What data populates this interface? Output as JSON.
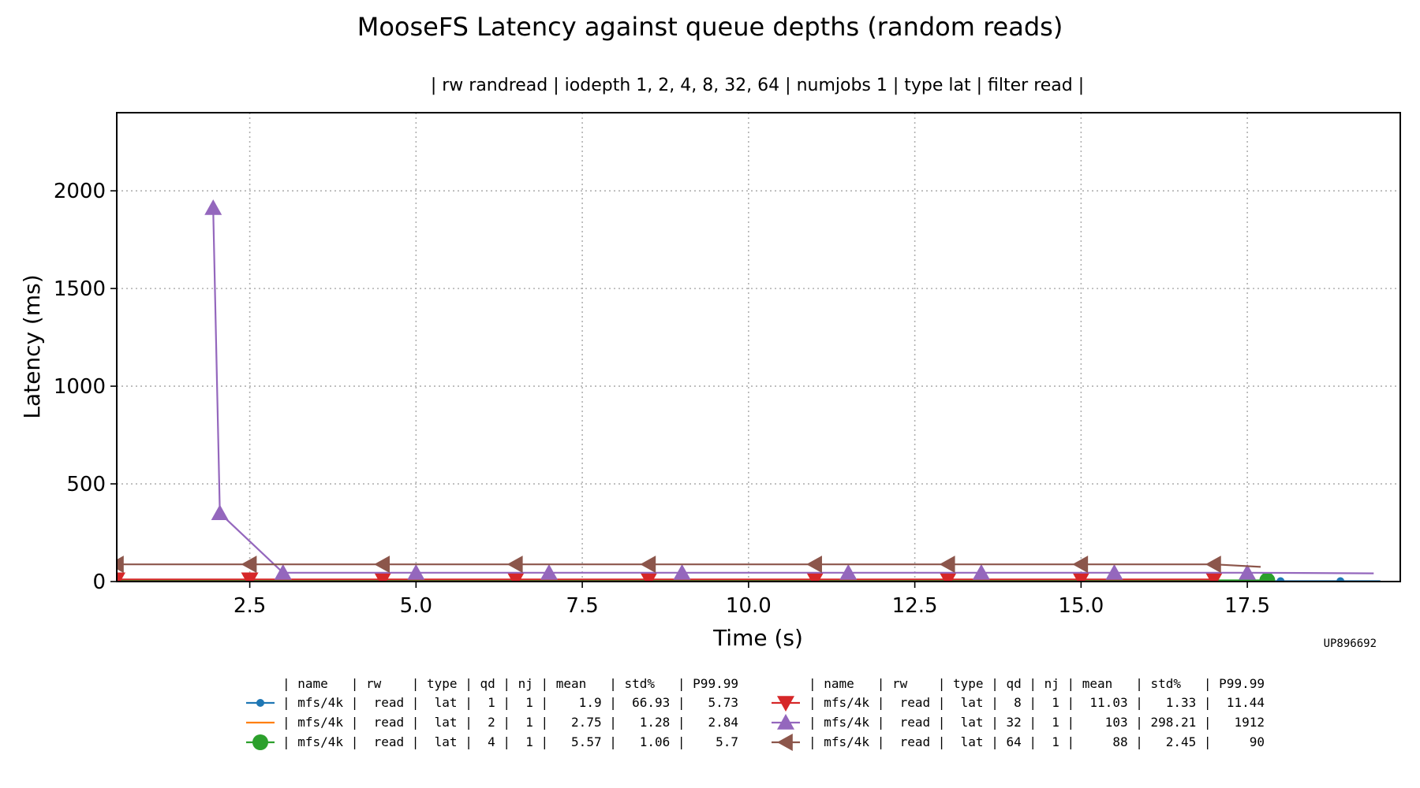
{
  "chart_data": {
    "type": "line",
    "title": "MooseFS Latency against queue depths (random reads)",
    "subtitle": "| rw randread | iodepth 1, 2, 4, 8, 32, 64 | numjobs 1 | type lat | filter read |",
    "xlabel": "Time (s)",
    "ylabel": "Latency (ms)",
    "xlim": [
      0.5,
      19.8
    ],
    "ylim": [
      0,
      2400
    ],
    "x_ticks": [
      "2.5",
      "5.0",
      "7.5",
      "10.0",
      "12.5",
      "15.0",
      "17.5"
    ],
    "y_ticks": [
      "0",
      "500",
      "1000",
      "1500",
      "2000"
    ],
    "grid": true,
    "legend_position": "bottom",
    "watermark": "UP896692",
    "legend_header": "| name   | rw    | type | qd | nj | mean   | std%   | P99.99",
    "series": [
      {
        "label": "| mfs/4k |  read |  lat |  1 |  1 |    1.9 |  66.93 |   5.73",
        "color": "#1f77b4",
        "marker": "circle-small",
        "marker_every": 18,
        "x": [
          0.5,
          1,
          2,
          3,
          4,
          5,
          6,
          7,
          8,
          9,
          10,
          11,
          12,
          13,
          14,
          15,
          16,
          17,
          18,
          18.9,
          19.5
        ],
        "y": [
          2,
          2,
          2,
          2,
          2,
          2,
          2,
          2,
          2,
          2,
          2,
          2,
          2,
          2,
          2,
          2,
          2,
          2,
          2,
          2,
          2
        ]
      },
      {
        "label": "| mfs/4k |  read |  lat |  2 |  1 |   2.75 |   1.28 |   2.84",
        "color": "#ff7f0e",
        "marker": "none",
        "marker_every": 1,
        "x": [
          0.5,
          2,
          4,
          6,
          8,
          10,
          12,
          14,
          16,
          17.8
        ],
        "y": [
          3,
          3,
          3,
          3,
          3,
          3,
          3,
          3,
          3,
          3
        ]
      },
      {
        "label": "| mfs/4k |  read |  lat |  4 |  1 |   5.57 |   1.06 |    5.7",
        "color": "#2ca02c",
        "marker": "circle",
        "marker_every": 100,
        "x": [
          0.5,
          2,
          4,
          6,
          8,
          10,
          12,
          14,
          16,
          17.8
        ],
        "y": [
          6,
          6,
          6,
          6,
          6,
          6,
          6,
          6,
          6,
          6
        ]
      },
      {
        "label": "| mfs/4k |  read |  lat |  8 |  1 |  11.03 |   1.33 |  11.44",
        "color": "#d62728",
        "marker": "triangle-down",
        "marker_every": 1,
        "x": [
          0.5,
          2.5,
          4.5,
          6.5,
          8.5,
          11,
          13,
          15,
          17
        ],
        "y": [
          11,
          11,
          11,
          11,
          11,
          11,
          11,
          11,
          11
        ]
      },
      {
        "label": "| mfs/4k |  read |  lat | 32 |  1 |    103 | 298.21 |   1912",
        "color": "#9467bd",
        "marker": "triangle-up",
        "marker_every": 1,
        "x": [
          1.95,
          2.05,
          3,
          5,
          7,
          9,
          11.5,
          13.5,
          15.5,
          17.5
        ],
        "y": [
          1912,
          350,
          45,
          45,
          45,
          45,
          45,
          45,
          45,
          45
        ],
        "x_tail": [
          19.4
        ],
        "y_tail": [
          42
        ]
      },
      {
        "label": "| mfs/4k |  read |  lat | 64 |  1 |     88 |   2.45 |     90",
        "color": "#8c564b",
        "marker": "triangle-left",
        "marker_every": 1,
        "x": [
          0.5,
          2.5,
          4.5,
          6.5,
          8.5,
          11,
          13,
          15,
          17
        ],
        "y": [
          88,
          88,
          88,
          88,
          88,
          88,
          88,
          88,
          88
        ],
        "x_tail": [
          17.7
        ],
        "y_tail": [
          75
        ]
      }
    ]
  }
}
